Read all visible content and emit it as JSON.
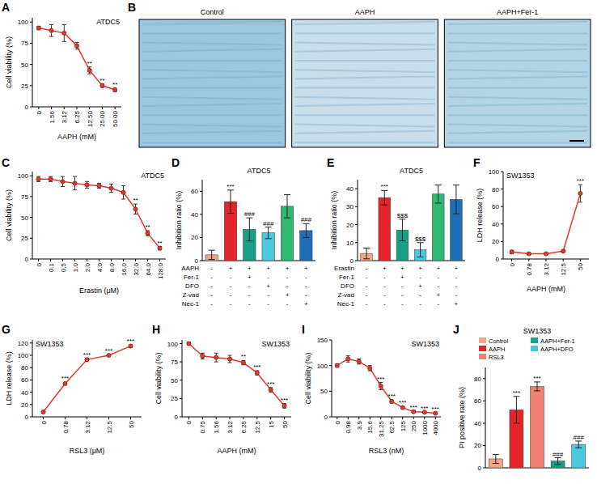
{
  "chart_data": [
    {
      "panel": "A",
      "type": "line",
      "title": "ATDC5",
      "x_label": "AAPH (mM)",
      "y_label": "Cell viability (%)",
      "categories": [
        "0",
        "1.56",
        "3.12",
        "6.25",
        "12.50",
        "25.00",
        "50.00"
      ],
      "values": [
        93,
        90,
        87,
        72,
        43,
        25,
        20
      ],
      "errors": [
        2,
        7,
        10,
        4,
        4,
        2,
        2
      ],
      "color": "#e03a2f",
      "marker": "circle",
      "ylim": [
        0,
        105
      ],
      "yticks": [
        0,
        25,
        50,
        75,
        100
      ],
      "grid": false,
      "annotations": [
        {
          "index": 4,
          "text": "**"
        },
        {
          "index": 5,
          "text": "**"
        },
        {
          "index": 6,
          "text": "**"
        }
      ]
    },
    {
      "panel": "B",
      "type": "image",
      "images": [
        "Control",
        "AAPH",
        "AAPH+Fer-1"
      ],
      "colors": [
        "#9cc6de",
        "#c8dfe9",
        "#b3d4e5"
      ]
    },
    {
      "panel": "C",
      "type": "line",
      "title": "ATDC5",
      "x_label": "Erastin (μM)",
      "y_label": "Cell viability (%)",
      "categories": [
        "0",
        "0.1",
        "0.5",
        "1.0",
        "2.0",
        "4.0",
        "8.0",
        "16.0",
        "32.0",
        "64.0",
        "128.0"
      ],
      "values": [
        96,
        96,
        93,
        91,
        89,
        88,
        85,
        80,
        60,
        31,
        13
      ],
      "errors": [
        3,
        3,
        6,
        8,
        4,
        3,
        5,
        8,
        6,
        3,
        2
      ],
      "color": "#e03a2f",
      "marker": "circle",
      "ylim": [
        0,
        105
      ],
      "yticks": [
        0,
        25,
        50,
        75,
        100
      ],
      "grid": false,
      "annotations": [
        {
          "index": 8,
          "text": "**"
        },
        {
          "index": 9,
          "text": "**"
        },
        {
          "index": 10,
          "text": "**"
        }
      ]
    },
    {
      "panel": "D",
      "type": "bar",
      "title": "ATDC5",
      "y_label": "Inhibition ratio (%)",
      "categories": [
        null,
        null,
        null,
        null,
        null,
        null
      ],
      "values": [
        5,
        51,
        27,
        24,
        47,
        26
      ],
      "errors": [
        4,
        10,
        10,
        5,
        10,
        6
      ],
      "colors": [
        "#f4a582",
        "#e3242b",
        "#16a085",
        "#48c9e0",
        "#2eb872",
        "#1f6fb8"
      ],
      "ylim": [
        0,
        70
      ],
      "yticks": [
        0,
        20,
        40,
        60
      ],
      "grid": false,
      "tick_labels": "y",
      "annotations": [
        {
          "index": 1,
          "text": "***"
        },
        {
          "index": 2,
          "text": "###"
        },
        {
          "index": 3,
          "text": "###"
        },
        {
          "index": 5,
          "text": "###"
        }
      ],
      "treatment_table": {
        "rows": [
          {
            "label": "AAPH",
            "marks": [
              "-",
              "+",
              "+",
              "+",
              "+",
              "+"
            ]
          },
          {
            "label": "Fer-1",
            "marks": [
              "-",
              "-",
              "+",
              "-",
              "-",
              "-"
            ]
          },
          {
            "label": "DFO",
            "marks": [
              "-",
              "-",
              "-",
              "+",
              "-",
              "-"
            ]
          },
          {
            "label": "Z-vad",
            "marks": [
              "-",
              "-",
              "-",
              "-",
              "+",
              "-"
            ]
          },
          {
            "label": "Nec-1",
            "marks": [
              "-",
              "-",
              "-",
              "-",
              "-",
              "+"
            ]
          }
        ]
      }
    },
    {
      "panel": "E",
      "type": "bar",
      "title": "ATDC5",
      "y_label": "Inhibition ratio (%)",
      "categories": [
        null,
        null,
        null,
        null,
        null,
        null
      ],
      "values": [
        4,
        35,
        17,
        6,
        37,
        34
      ],
      "errors": [
        3,
        4,
        6,
        4,
        5,
        8
      ],
      "colors": [
        "#f4a582",
        "#e3242b",
        "#16a085",
        "#48c9e0",
        "#2eb872",
        "#1f6fb8"
      ],
      "ylim": [
        0,
        45
      ],
      "yticks": [
        0,
        10,
        20,
        30,
        40
      ],
      "grid": false,
      "tick_labels": "y",
      "annotations": [
        {
          "index": 1,
          "text": "***"
        },
        {
          "index": 2,
          "text": "$$$"
        },
        {
          "index": 3,
          "text": "$$$"
        }
      ],
      "treatment_table": {
        "rows": [
          {
            "label": "Erastin",
            "marks": [
              "-",
              "+",
              "+",
              "+",
              "+",
              "+"
            ]
          },
          {
            "label": "Fer-1",
            "marks": [
              "-",
              "-",
              "+",
              "-",
              "-",
              "-"
            ]
          },
          {
            "label": "DFO",
            "marks": [
              "-",
              "-",
              "-",
              "+",
              "-",
              "-"
            ]
          },
          {
            "label": "Z-vad",
            "marks": [
              "-",
              "-",
              "-",
              "-",
              "+",
              "-"
            ]
          },
          {
            "label": "Nec-1",
            "marks": [
              "-",
              "-",
              "-",
              "-",
              "-",
              "+"
            ]
          }
        ]
      }
    },
    {
      "panel": "F",
      "type": "line",
      "title": "SW1353",
      "x_label": "AAPH (mM)",
      "y_label": "LDH release (%)",
      "categories": [
        "0",
        "0.78",
        "3.12",
        "12.5",
        "50"
      ],
      "values": [
        8,
        6,
        6,
        9,
        75
      ],
      "errors": [
        2,
        1,
        1,
        1,
        10
      ],
      "color": "#e03a2f",
      "marker": "circle",
      "ylim": [
        0,
        100
      ],
      "yticks": [
        0,
        20,
        40,
        60,
        80,
        100
      ],
      "grid": false,
      "annotations": [
        {
          "index": 4,
          "text": "***"
        }
      ]
    },
    {
      "panel": "G",
      "type": "line",
      "title": "SW1353",
      "x_label": "RSL3 (μM)",
      "y_label": "LDH release (%)",
      "categories": [
        "0",
        "0.78",
        "3.12",
        "12.5",
        "50"
      ],
      "values": [
        8,
        54,
        93,
        100,
        115
      ],
      "errors": [
        1,
        2,
        2,
        1,
        2
      ],
      "color": "#e03a2f",
      "marker": "circle",
      "ylim": [
        0,
        125
      ],
      "yticks": [
        0,
        20,
        40,
        60,
        80,
        100,
        120
      ],
      "grid": false,
      "annotations": [
        {
          "index": 1,
          "text": "***"
        },
        {
          "index": 2,
          "text": "***"
        },
        {
          "index": 3,
          "text": "***"
        },
        {
          "index": 4,
          "text": "***"
        }
      ]
    },
    {
      "panel": "H",
      "type": "line",
      "title": "SW1353",
      "x_label": "AAPH (mM)",
      "y_label": "Cell viability (%)",
      "categories": [
        "0",
        "0.75",
        "1.56",
        "3.12",
        "6.25",
        "12.5",
        "15",
        "50"
      ],
      "values": [
        100,
        83,
        81,
        79,
        74,
        60,
        37,
        15
      ],
      "errors": [
        2,
        4,
        6,
        5,
        3,
        3,
        3,
        3
      ],
      "color": "#e03a2f",
      "marker": "circle",
      "ylim": [
        0,
        105
      ],
      "yticks": [
        0,
        25,
        50,
        75,
        100
      ],
      "grid": false,
      "annotations": [
        {
          "index": 4,
          "text": "**"
        },
        {
          "index": 5,
          "text": "***"
        },
        {
          "index": 6,
          "text": "***"
        },
        {
          "index": 7,
          "text": "***"
        }
      ]
    },
    {
      "panel": "I",
      "type": "line",
      "title": "SW1353",
      "x_label": "RSL3 (nM)",
      "y_label": "Cell viability (%)",
      "categories": [
        "0",
        "0.98",
        "3.9",
        "15.6",
        "31.25",
        "62.5",
        "125",
        "250",
        "1000",
        "4000"
      ],
      "values": [
        100,
        113,
        108,
        95,
        60,
        30,
        18,
        10,
        9,
        7
      ],
      "errors": [
        3,
        6,
        5,
        5,
        7,
        3,
        2,
        1,
        1,
        1
      ],
      "color": "#e03a2f",
      "marker": "circle",
      "ylim": [
        0,
        150
      ],
      "yticks": [
        0,
        50,
        100,
        150
      ],
      "grid": false,
      "annotations": [
        {
          "index": 4,
          "text": "***"
        },
        {
          "index": 5,
          "text": "***"
        },
        {
          "index": 6,
          "text": "***"
        },
        {
          "index": 7,
          "text": "***"
        },
        {
          "index": 8,
          "text": "***"
        },
        {
          "index": 9,
          "text": "***"
        }
      ]
    },
    {
      "panel": "J",
      "type": "bar",
      "title": "SW1353",
      "y_label": "PI positive rate (%)",
      "categories": [
        "Control",
        "AAPH",
        "RSL3",
        "AAPH+Fer-1",
        "AAPH+DFO"
      ],
      "values": [
        8,
        52,
        73,
        6,
        21
      ],
      "errors": [
        4,
        12,
        4,
        3,
        3
      ],
      "colors": [
        "#f4a582",
        "#e3242b",
        "#f08070",
        "#16a085",
        "#48c9e0"
      ],
      "ylim": [
        0,
        90
      ],
      "yticks": [
        0,
        20,
        40,
        60,
        80
      ],
      "grid": false,
      "legend": "top",
      "tick_labels": "y",
      "annotations": [
        {
          "index": 1,
          "text": "***"
        },
        {
          "index": 2,
          "text": "***"
        },
        {
          "index": 3,
          "text": "###"
        },
        {
          "index": 4,
          "text": "###"
        }
      ]
    }
  ]
}
